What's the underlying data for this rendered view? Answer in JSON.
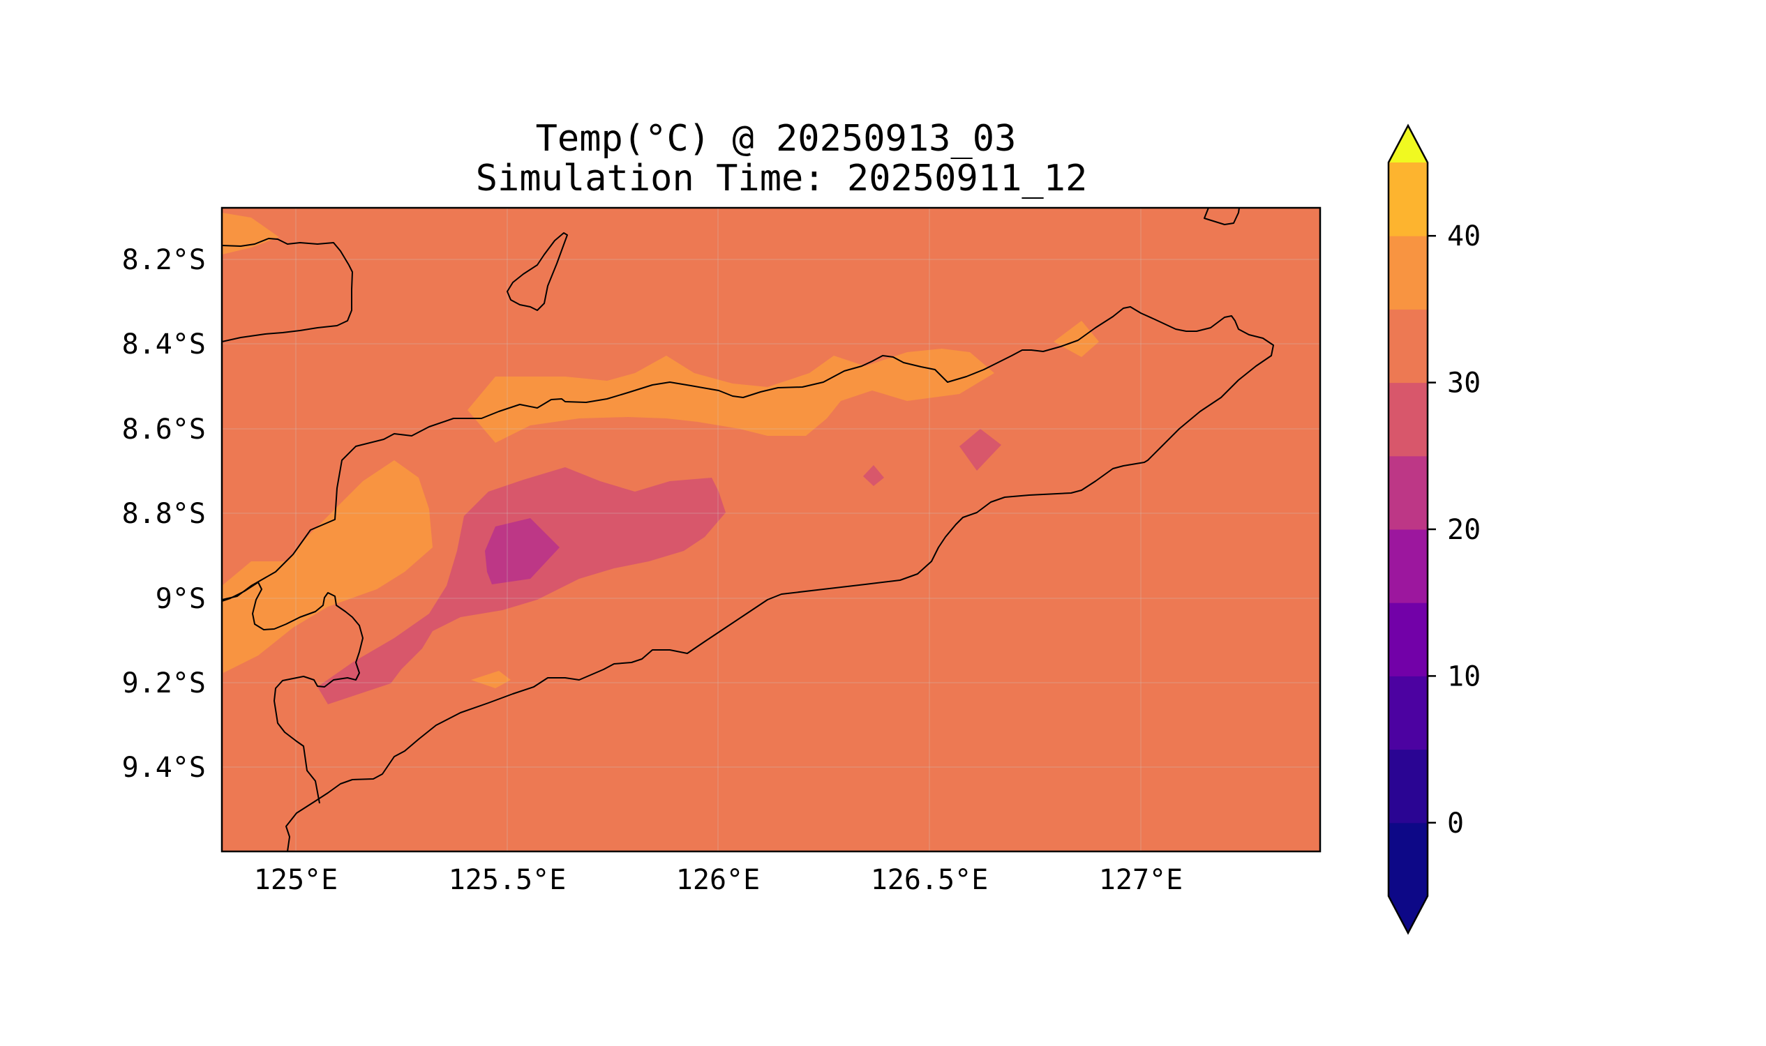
{
  "chart_data": {
    "type": "heatmap",
    "title_line1": "Temp(°C) @ 20250913_03",
    "title_line2": "Simulation Time: 20250911_12",
    "x_ticks": [
      "125°E",
      "125.5°E",
      "126°E",
      "126.5°E",
      "127°E"
    ],
    "y_ticks": [
      "8.2°S",
      "8.4°S",
      "8.6°S",
      "8.8°S",
      "9°S",
      "9.2°S",
      "9.4°S"
    ],
    "xlim": [
      124.82,
      127.42
    ],
    "ylim": [
      -9.6,
      -8.08
    ],
    "grid": true,
    "colorbar": {
      "label_ticks": [
        "0",
        "10",
        "20",
        "30",
        "40"
      ],
      "levels": [
        -5,
        0,
        5,
        10,
        15,
        20,
        25,
        30,
        35,
        40,
        45
      ],
      "extend": "both",
      "colors": [
        "#0d0887",
        "#2a0593",
        "#4c02a1",
        "#7201a8",
        "#9c179e",
        "#bd3786",
        "#d8576b",
        "#ed7953",
        "#f89441",
        "#fdb42f",
        "#f0f921"
      ],
      "under_color": "#0d0887",
      "over_color": "#f0f921"
    },
    "field": {
      "background_band": "25-30",
      "regions": [
        {
          "band": "30-35",
          "name": "northern-coast-warm-strip"
        },
        {
          "band": "30-35",
          "name": "western-warm-area"
        },
        {
          "band": "30-35",
          "name": "northwest-corner-warm"
        },
        {
          "band": "20-25",
          "name": "central-cool-area"
        },
        {
          "band": "15-20",
          "name": "central-coolest-core"
        },
        {
          "band": "20-25",
          "name": "small-cool-spot-east"
        }
      ]
    }
  }
}
